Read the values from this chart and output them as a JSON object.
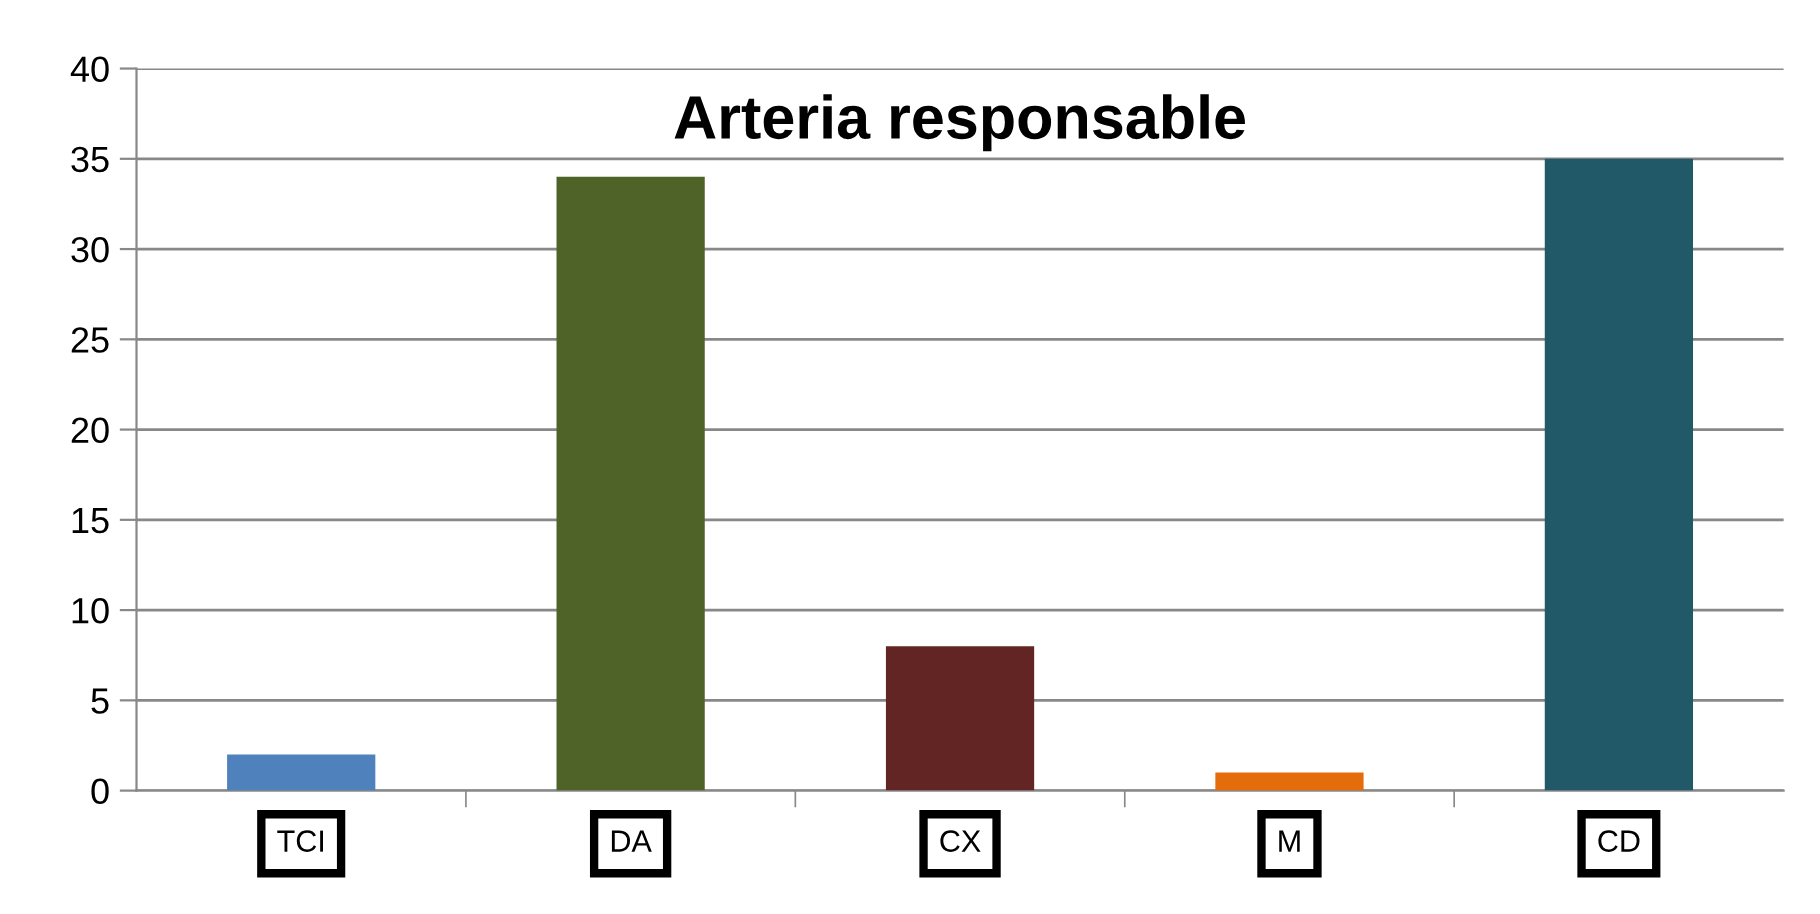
{
  "chart_data": {
    "type": "bar",
    "title": "Arteria responsable",
    "categories": [
      "TCI",
      "DA",
      "CX",
      "M",
      "CD"
    ],
    "values": [
      2,
      34,
      8,
      1,
      35
    ],
    "colors": [
      "#4f81bd",
      "#4f6228",
      "#632523",
      "#e46c0a",
      "#215968"
    ],
    "ylim": [
      0,
      40
    ],
    "yticks": [
      0,
      5,
      10,
      15,
      20,
      25,
      30,
      35,
      40
    ],
    "grid": "y",
    "legend": false
  }
}
